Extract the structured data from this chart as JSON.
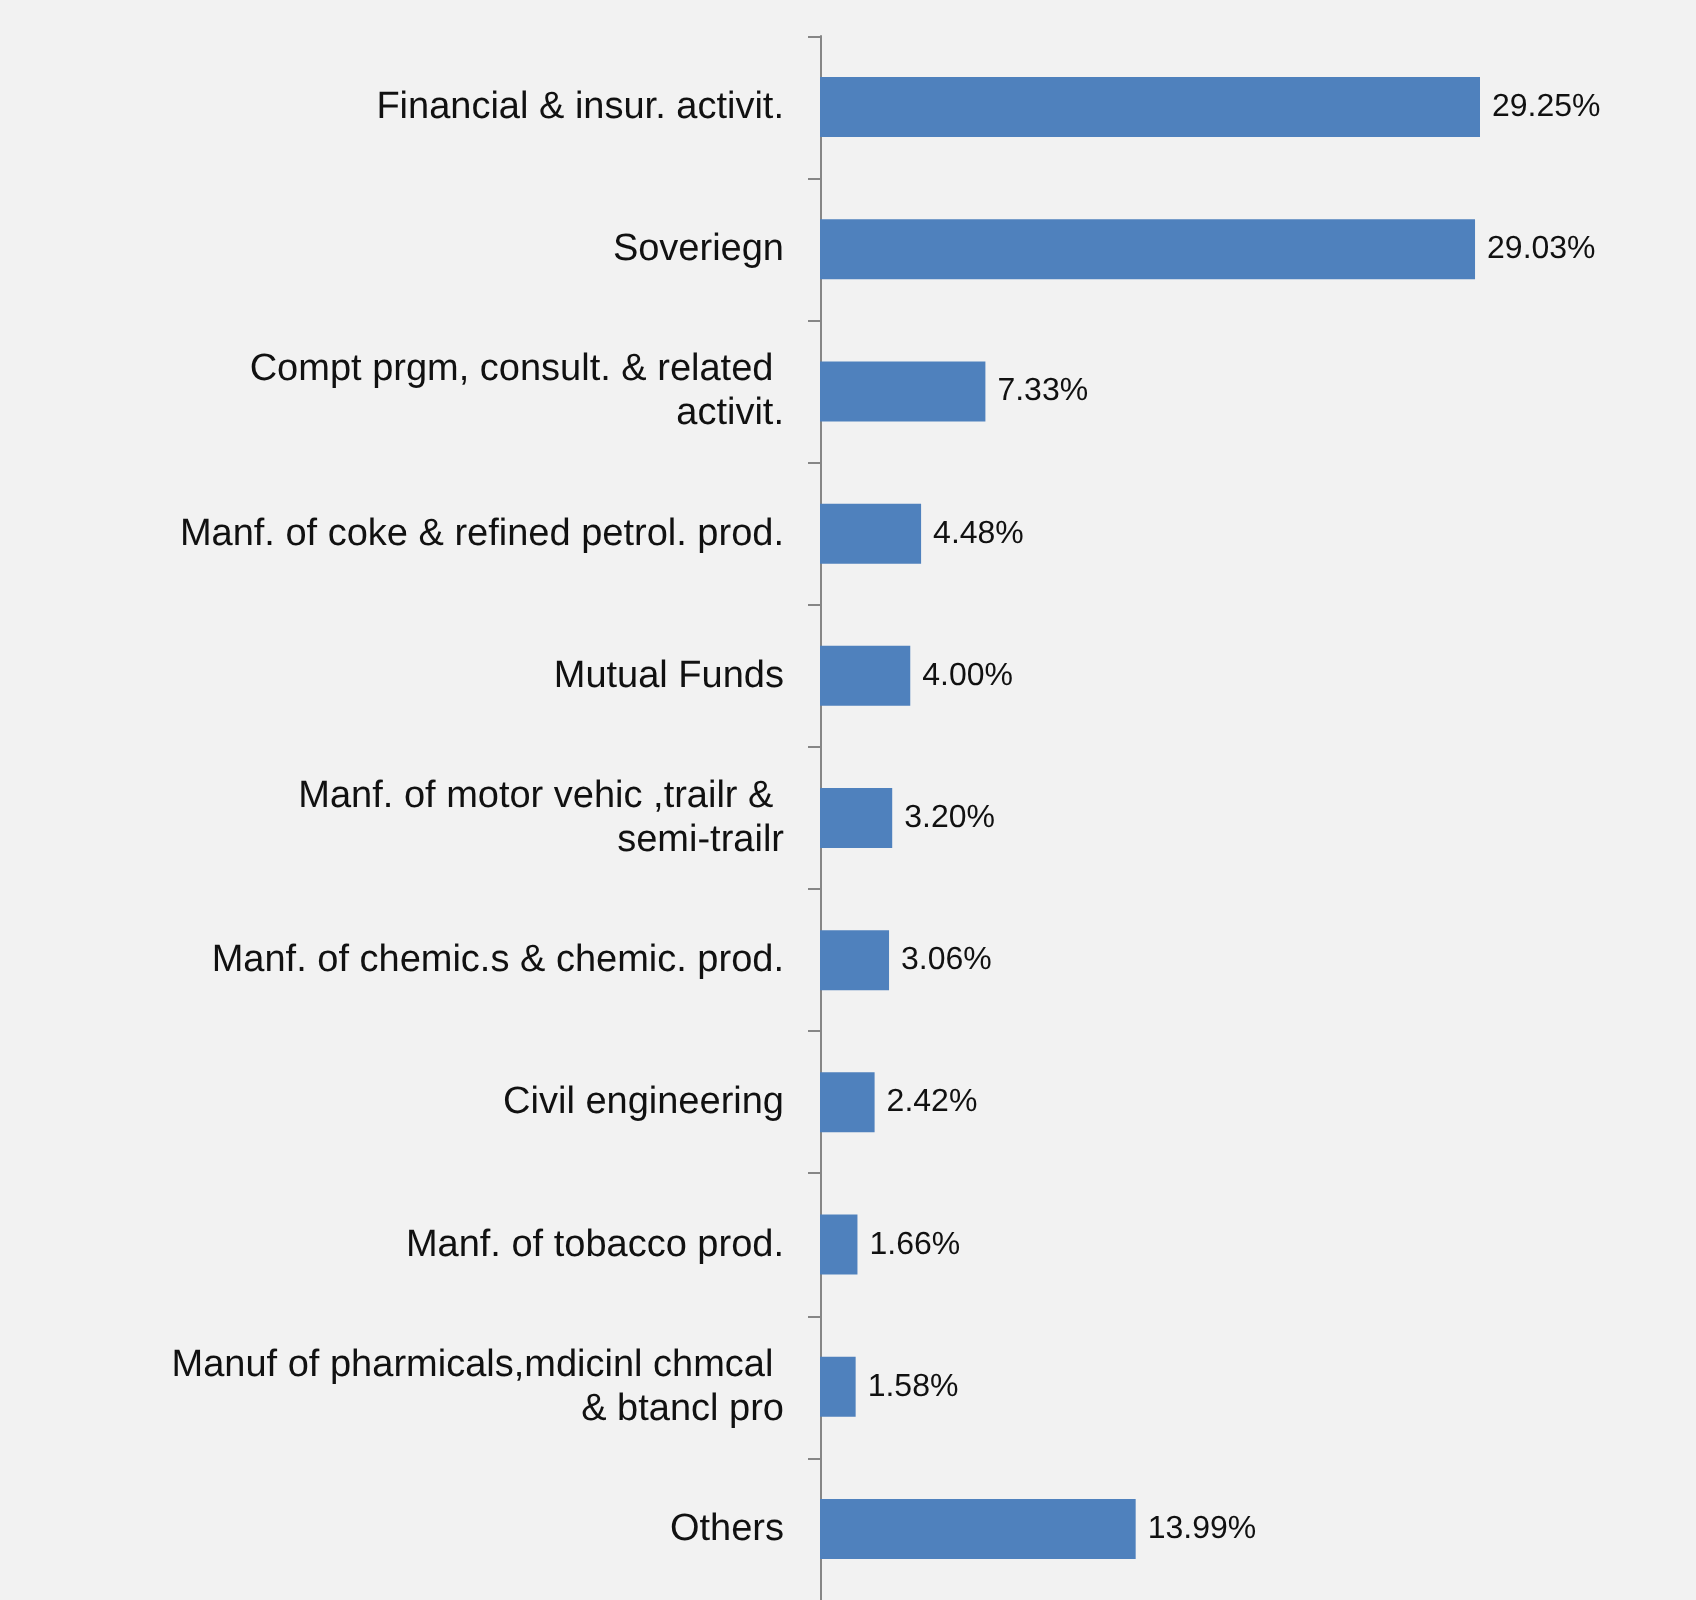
{
  "chart_data": {
    "type": "bar",
    "orientation": "horizontal",
    "categories": [
      "Financial & insur. activit.",
      "Soveriegn",
      "Compt prgm, consult. & related activit.",
      "Manf. of coke & refined petrol. prod.",
      "Mutual Funds",
      "Manf. of motor vehic ,trailr & semi-trailr",
      "Manf. of chemic.s & chemic. prod.",
      "Civil engineering",
      "Manf. of tobacco prod.",
      "Manuf of pharmicals,mdicinl chmcal & btancl pro",
      "Others"
    ],
    "values": [
      29.25,
      29.03,
      7.33,
      4.48,
      4.0,
      3.2,
      3.06,
      2.42,
      1.66,
      1.58,
      13.99
    ],
    "value_labels": [
      "29.25%",
      "29.03%",
      "7.33%",
      "4.48%",
      "4.00%",
      "3.20%",
      "3.06%",
      "2.42%",
      "1.66%",
      "1.58%",
      "13.99%"
    ],
    "color": "#4f81bd"
  }
}
